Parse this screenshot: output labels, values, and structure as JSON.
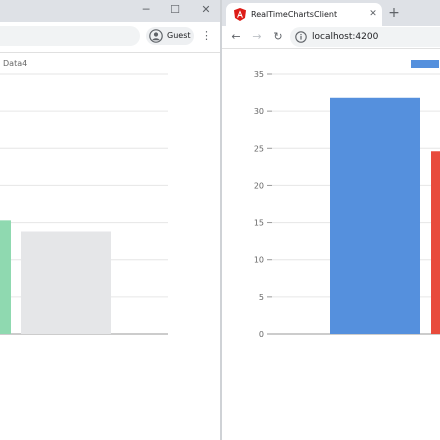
{
  "left_window": {
    "window_controls": {
      "minimize": "─",
      "maximize": "☐",
      "close": "✕"
    },
    "profile": {
      "label": "Guest",
      "icon": "person-circle-icon"
    },
    "menu_icon": "⋮",
    "chart": {
      "legend_visible": "Data4"
    }
  },
  "right_window": {
    "tab": {
      "title": "RealTimeChartsClient",
      "icon": "angular-icon",
      "close": "✕"
    },
    "new_tab": "+",
    "nav": {
      "back": "←",
      "forward": "→",
      "reload": "↻"
    },
    "url": "localhost:4200"
  },
  "chart_data": [
    {
      "type": "bar",
      "note_visible_region": "left window, cropped",
      "legend": [
        "Data4"
      ],
      "series": [
        {
          "color": "#8fd9b0",
          "values": [
            15.3
          ]
        },
        {
          "color": "#e5e6e8",
          "values": [
            13.8
          ]
        }
      ],
      "ylim": [
        0,
        35
      ],
      "grid": true
    },
    {
      "type": "bar",
      "note_visible_region": "right window, cropped",
      "yticks": [
        "0",
        "5",
        "10",
        "15",
        "20",
        "25",
        "30",
        "35"
      ],
      "ylim": [
        0,
        35
      ],
      "series": [
        {
          "color": "#5590dd",
          "values": [
            31.8
          ]
        },
        {
          "color": "#e84b3c",
          "values": [
            24.6
          ]
        }
      ],
      "legend_color": "#5590dd",
      "grid": true
    }
  ]
}
